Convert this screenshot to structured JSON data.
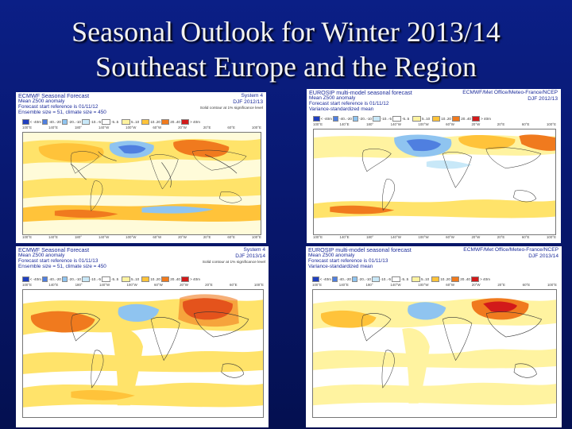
{
  "slide": {
    "title_line1": "Seasonal Outlook for Winter 2013/14",
    "title_line2": "Southeast Europe and the Region"
  },
  "panels": [
    {
      "id": "ecmwf-2012",
      "header_lines": [
        "ECMWF Seasonal Forecast",
        "Mean Z500 anomaly",
        "Forecast start reference is 01/11/12",
        "Ensemble size = 51, climate size = 450"
      ],
      "header_right": [
        "System 4",
        "DJF 2012/13"
      ],
      "note": "Solid contour at 1% significance level",
      "legend": [
        "< -40m",
        "-40..-20",
        "-20..-10",
        "-10..-5",
        "-5..5",
        "5..10",
        "10..20",
        "20..40",
        "> 40m"
      ]
    },
    {
      "id": "eurosip-2012",
      "header_lines": [
        "EUROSIP multi-model seasonal forecast",
        "Mean Z500 anomaly",
        "Forecast start reference is 01/11/12",
        "Variance-standardized mean"
      ],
      "header_right": [
        "ECMWF/Met Office/Meteo-France/NCEP",
        "DJF 2012/13"
      ],
      "note": "",
      "legend": [
        "< -40m",
        "-40..-20",
        "-20..-10",
        "-10..-5",
        "-5..5",
        "5..10",
        "10..20",
        "20..40",
        "> 40m"
      ]
    },
    {
      "id": "ecmwf-2013",
      "header_lines": [
        "ECMWF Seasonal Forecast",
        "Mean Z500 anomaly",
        "Forecast start reference is 01/11/13",
        "Ensemble size = 51, climate size = 450"
      ],
      "header_right": [
        "System 4",
        "DJF 2013/14"
      ],
      "note": "Solid contour at 1% significance level",
      "legend": [
        "< -40m",
        "-40..-20",
        "-20..-10",
        "-10..-5",
        "-5..5",
        "5..10",
        "10..20",
        "20..40",
        "> 40m"
      ]
    },
    {
      "id": "eurosip-2013",
      "header_lines": [
        "EUROSIP multi-model seasonal forecast",
        "Mean Z500 anomaly",
        "Forecast start reference is 01/11/13",
        "Variance-standardized mean"
      ],
      "header_right": [
        "ECMWF/Met Office/Meteo-France/NCEP",
        "DJF 2013/14"
      ],
      "note": "",
      "legend": [
        "< -40m",
        "-40..-20",
        "-20..-10",
        "-10..-5",
        "-5..5",
        "5..10",
        "10..20",
        "20..40",
        "> 40m"
      ]
    }
  ],
  "legend_colors": [
    "#1f3fbf",
    "#4f7fe0",
    "#8fc4f0",
    "#c8e8f8",
    "#ffffff",
    "#fff3a0",
    "#ffc33a",
    "#f07a1e",
    "#d21a1a"
  ],
  "lon_labels": [
    "100°E",
    "140°E",
    "180°",
    "140°W",
    "100°W",
    "60°W",
    "20°W",
    "20°E",
    "60°E",
    "100°E"
  ]
}
